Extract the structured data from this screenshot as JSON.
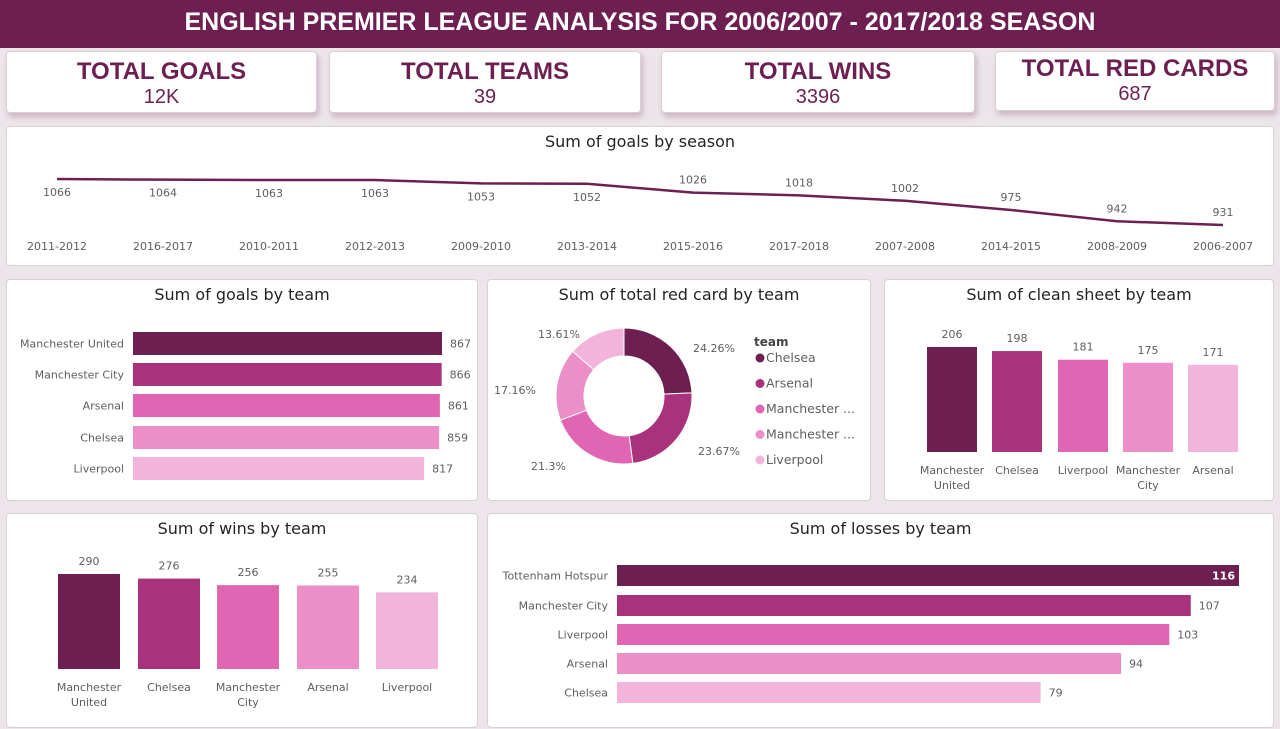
{
  "header": {
    "title": "ENGLISH PREMIER LEAGUE ANALYSIS FOR 2006/2007 - 2017/2018 SEASON"
  },
  "kpis": [
    {
      "label": "TOTAL GOALS",
      "value": "12K"
    },
    {
      "label": "TOTAL TEAMS",
      "value": "39"
    },
    {
      "label": "TOTAL WINS",
      "value": "3396"
    },
    {
      "label": "TOTAL RED CARDS",
      "value": "687"
    }
  ],
  "colors": {
    "brand": "#6e1f52",
    "palette": [
      "#6e1f52",
      "#a8337c",
      "#e066b3",
      "#ec8fc9",
      "#f3b4dc"
    ]
  },
  "chart_data": [
    {
      "type": "line",
      "title": "Sum of goals by season",
      "categories": [
        "2011-2012",
        "2016-2017",
        "2010-2011",
        "2012-2013",
        "2009-2010",
        "2013-2014",
        "2015-2016",
        "2017-2018",
        "2007-2008",
        "2014-2015",
        "2008-2009",
        "2006-2007"
      ],
      "values": [
        1066,
        1064,
        1063,
        1063,
        1053,
        1052,
        1026,
        1018,
        1002,
        975,
        942,
        931
      ]
    },
    {
      "type": "bar",
      "orientation": "horizontal",
      "title": "Sum of goals by team",
      "categories": [
        "Manchester United",
        "Manchester City",
        "Arsenal",
        "Chelsea",
        "Liverpool"
      ],
      "values": [
        867,
        866,
        861,
        859,
        817
      ]
    },
    {
      "type": "pie",
      "donut": true,
      "title": "Sum of total red card by team",
      "legend_title": "team",
      "legend": [
        "Chelsea",
        "Arsenal",
        "Manchester ...",
        "Manchester ...",
        "Liverpool"
      ],
      "labels": [
        "24.26%",
        "23.67%",
        "21.3%",
        "17.16%",
        "13.61%"
      ],
      "values": [
        24.26,
        23.67,
        21.3,
        17.16,
        13.61
      ],
      "legend_position": "right"
    },
    {
      "type": "bar",
      "orientation": "vertical",
      "title": "Sum of clean sheet by team",
      "categories": [
        [
          "Manchester",
          "United"
        ],
        [
          "Chelsea"
        ],
        [
          "Liverpool"
        ],
        [
          "Manchester",
          "City"
        ],
        [
          "Arsenal"
        ]
      ],
      "values": [
        206,
        198,
        181,
        175,
        171
      ]
    },
    {
      "type": "bar",
      "orientation": "vertical",
      "title": "Sum of wins by team",
      "categories": [
        [
          "Manchester",
          "United"
        ],
        [
          "Chelsea"
        ],
        [
          "Manchester",
          "City"
        ],
        [
          "Arsenal"
        ],
        [
          "Liverpool"
        ]
      ],
      "values": [
        290,
        276,
        256,
        255,
        234
      ]
    },
    {
      "type": "bar",
      "orientation": "horizontal",
      "title": "Sum of losses by team",
      "categories": [
        "Tottenham Hotspur",
        "Manchester City",
        "Liverpool",
        "Arsenal",
        "Chelsea"
      ],
      "values": [
        116,
        107,
        103,
        94,
        79
      ]
    }
  ]
}
